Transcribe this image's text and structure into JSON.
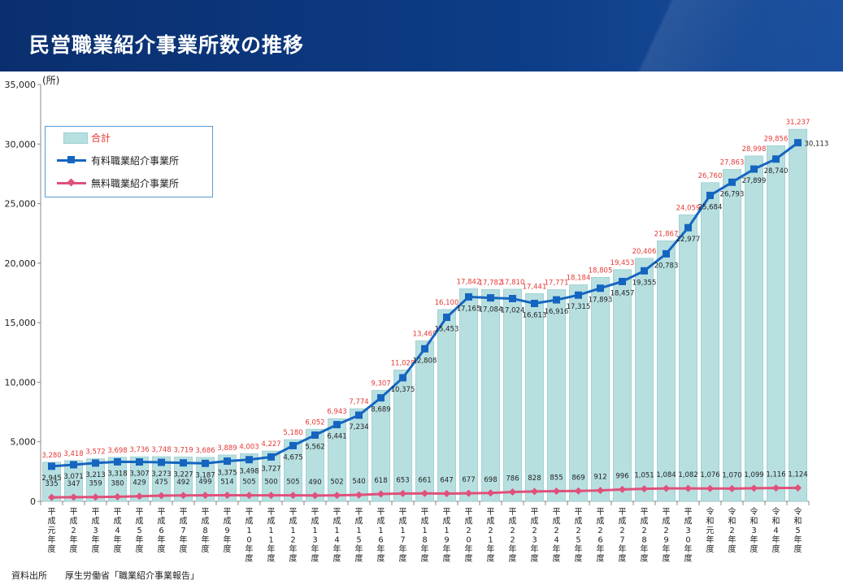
{
  "header": {
    "title": "民営職業紹介事業所数の推移"
  },
  "colors": {
    "total_bar": "#b7dfe0",
    "paid_line": "#1565c0",
    "free_line": "#e0507a",
    "total_label": "#e53935"
  },
  "chart_data": {
    "type": "bar",
    "unit_label": "(所)",
    "ylim": [
      0,
      35000
    ],
    "yticks": [
      "0",
      "5,000",
      "10,000",
      "15,000",
      "20,000",
      "25,000",
      "30,000",
      "35,000"
    ],
    "categories": [
      "平成元年度",
      "平成2年度",
      "平成3年度",
      "平成4年度",
      "平成5年度",
      "平成6年度",
      "平成7年度",
      "平成8年度",
      "平成9年度",
      "平成10年度",
      "平成11年度",
      "平成12年度",
      "平成13年度",
      "平成14年度",
      "平成15年度",
      "平成16年度",
      "平成17年度",
      "平成18年度",
      "平成19年度",
      "平成20年度",
      "平成21年度",
      "平成22年度",
      "平成23年度",
      "平成24年度",
      "平成25年度",
      "平成26年度",
      "平成27年度",
      "平成28年度",
      "平成29年度",
      "平成30年度",
      "令和元年度",
      "令和2年度",
      "令和3年度",
      "令和4年度",
      "令和5年度"
    ],
    "series": [
      {
        "name": "合計",
        "kind": "bar",
        "values": [
          3280,
          3418,
          3572,
          3698,
          3736,
          3748,
          3719,
          3686,
          3889,
          4003,
          4227,
          5180,
          6052,
          6943,
          7774,
          9307,
          11028,
          13469,
          16100,
          17842,
          17782,
          17810,
          17441,
          17771,
          18184,
          18805,
          19453,
          20406,
          21867,
          24059,
          26760,
          27863,
          28998,
          29856,
          31237
        ],
        "labels": [
          "3,280",
          "3,418",
          "3,572",
          "3,698",
          "3,736",
          "3,748",
          "3,719",
          "3,686",
          "3,889",
          "4,003",
          "4,227",
          "5,180",
          "6,052",
          "6,943",
          "7,774",
          "9,307",
          "11,028",
          "13,469",
          "16,100",
          "17,842",
          "17,782",
          "17,810",
          "17,441",
          "17,771",
          "18,184",
          "18,805",
          "19,453",
          "20,406",
          "21,867",
          "24,059",
          "26,760",
          "27,863",
          "28,998",
          "29,856",
          "31,237"
        ]
      },
      {
        "name": "有料職業紹介事業所",
        "kind": "line",
        "values": [
          2945,
          3071,
          3213,
          3318,
          3307,
          3273,
          3227,
          3187,
          3375,
          3498,
          3727,
          4675,
          5562,
          6441,
          7234,
          8689,
          10375,
          12808,
          15453,
          17165,
          17084,
          17024,
          16613,
          16916,
          17315,
          17893,
          18457,
          19355,
          20783,
          22977,
          25684,
          26793,
          27899,
          28740,
          30113
        ],
        "labels": [
          "2,945",
          "3,071",
          "3,213",
          "3,318",
          "3,307",
          "3,273",
          "3,227",
          "3,187",
          "3,375",
          "3,498",
          "3,727",
          "4,675",
          "5,562",
          "6,441",
          "7,234",
          "8,689",
          "10,375",
          "12,808",
          "15,453",
          "17,165",
          "17,084",
          "17,024",
          "16,613",
          "16,916",
          "17,315",
          "17,893",
          "18,457",
          "19,355",
          "20,783",
          "22,977",
          "25,684",
          "26,793",
          "27,899",
          "28,740",
          "30,113"
        ]
      },
      {
        "name": "無料職業紹介事業所",
        "kind": "line",
        "values": [
          335,
          347,
          359,
          380,
          429,
          475,
          492,
          499,
          514,
          505,
          500,
          505,
          490,
          502,
          540,
          618,
          653,
          661,
          647,
          677,
          698,
          786,
          828,
          855,
          869,
          912,
          996,
          1051,
          1084,
          1082,
          1076,
          1070,
          1099,
          1116,
          1124
        ],
        "labels": [
          "335",
          "347",
          "359",
          "380",
          "429",
          "475",
          "492",
          "499",
          "514",
          "505",
          "500",
          "505",
          "490",
          "502",
          "540",
          "618",
          "653",
          "661",
          "647",
          "677",
          "698",
          "786",
          "828",
          "855",
          "869",
          "912",
          "996",
          "1,051",
          "1,084",
          "1,082",
          "1,076",
          "1,070",
          "1,099",
          "1,116",
          "1,124"
        ]
      }
    ],
    "legend_placement": "top-left"
  },
  "footer": {
    "source_label": "資料出所",
    "source_text": "厚生労働省「職業紹介事業報告」"
  }
}
